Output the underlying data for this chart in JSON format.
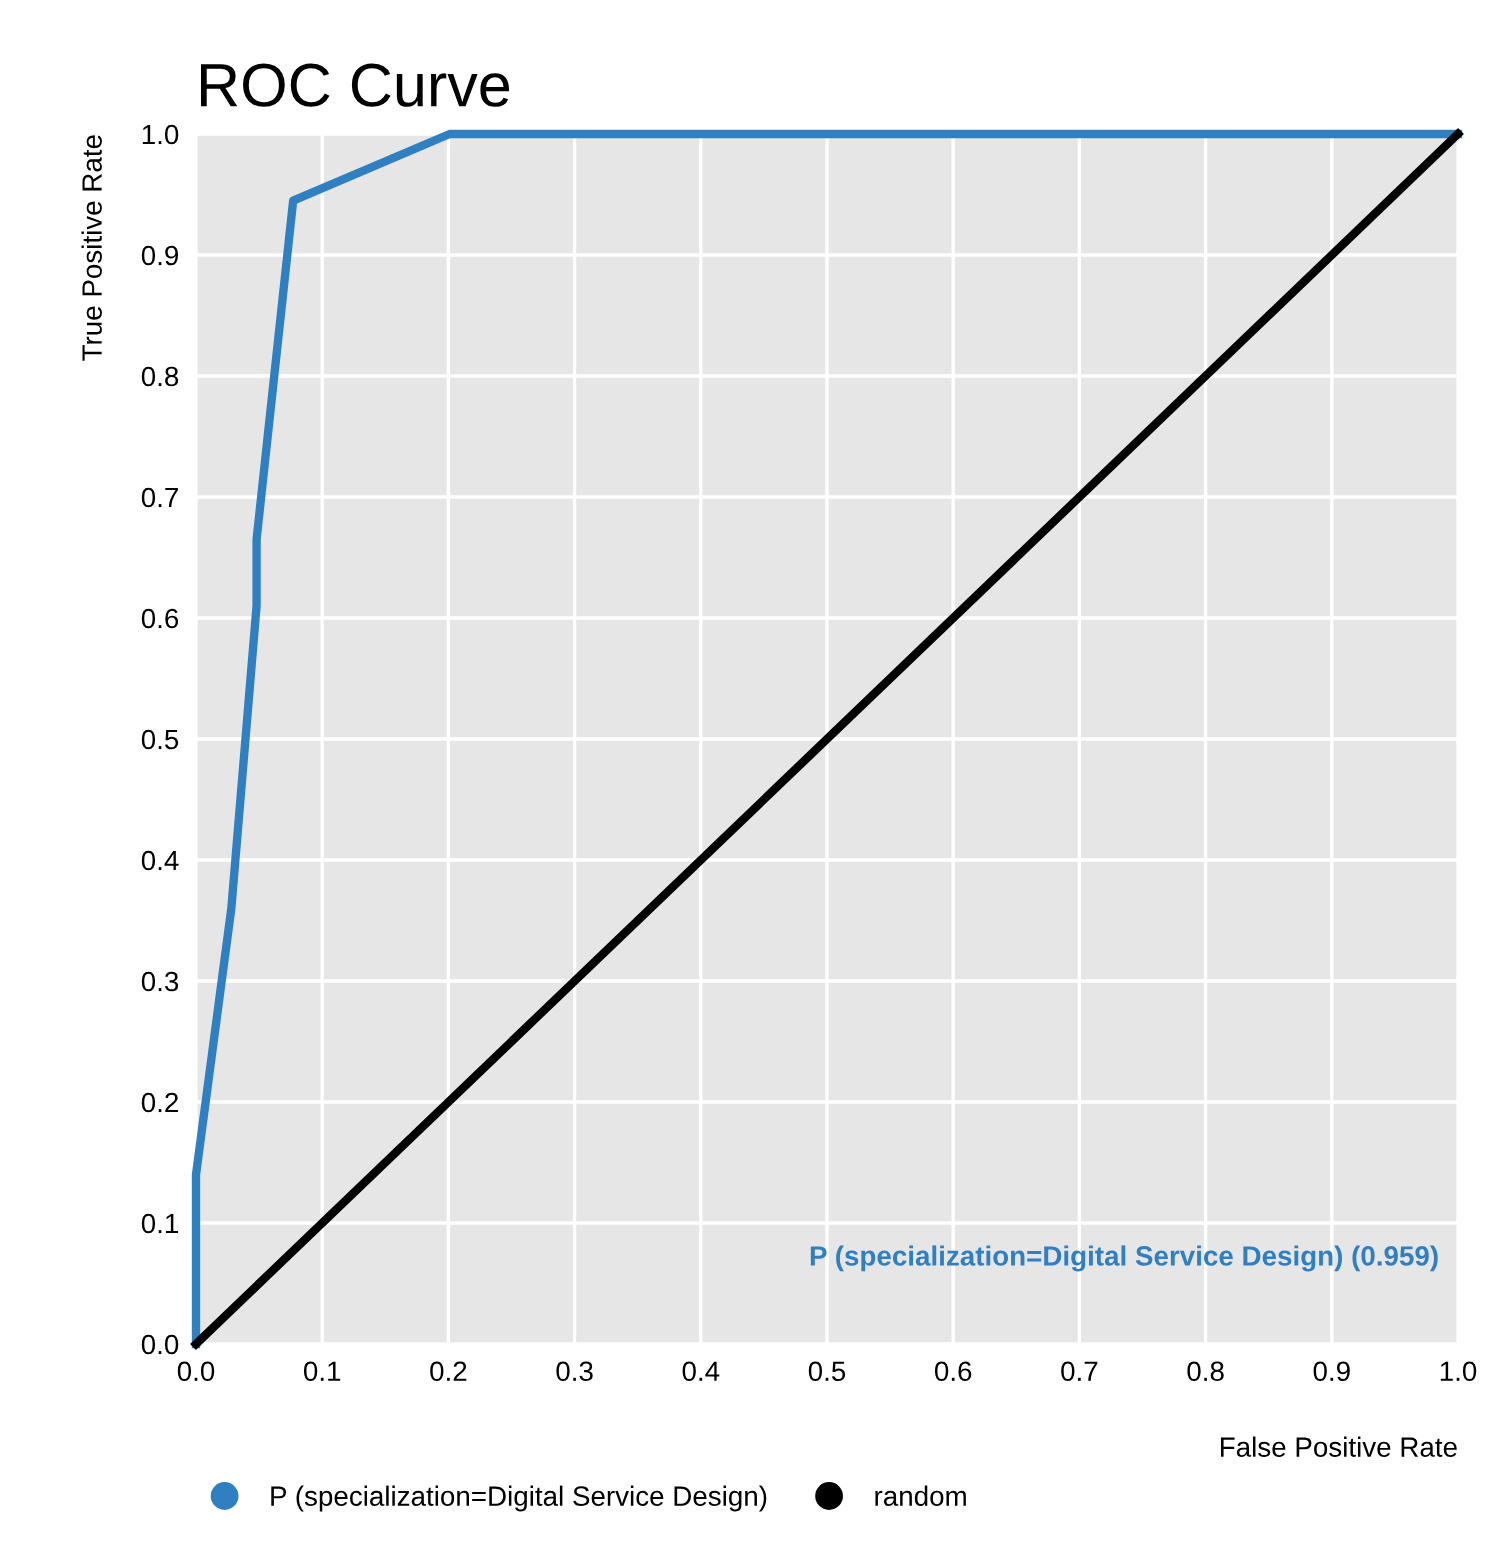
{
  "chart_data": {
    "type": "line",
    "title": "ROC Curve",
    "xlabel": "False Positive Rate",
    "ylabel": "True Positive Rate",
    "series": [
      {
        "name": "P (specialization=Digital Service Design)",
        "color": "#2f7fc1",
        "x": [
          0,
          0,
          0.028,
          0.048,
          0.048,
          0.077,
          0.201,
          1
        ],
        "values": [
          0,
          0.14,
          0.36,
          0.61,
          0.665,
          0.945,
          1,
          1
        ]
      },
      {
        "name": "random",
        "color": "#000000",
        "x": [
          0,
          1
        ],
        "values": [
          0,
          1
        ]
      }
    ],
    "annotations": [
      "P (specialization=Digital Service Design) (0.959)"
    ],
    "xlim": [
      0,
      1
    ],
    "ylim": [
      0,
      1
    ],
    "xticks": [
      {
        "value": 0,
        "label": "0.0"
      },
      0.1,
      0.2,
      0.3,
      0.4,
      0.5,
      0.6,
      0.7,
      0.8,
      0.9,
      {
        "value": 1,
        "label": "1.0"
      }
    ],
    "yticks": [
      {
        "value": 0,
        "label": "0.0"
      },
      0.1,
      0.2,
      0.3,
      0.4,
      0.5,
      0.6,
      0.7,
      0.8,
      0.9,
      {
        "value": 1,
        "label": "1.0"
      }
    ],
    "grid": true,
    "legend": "bottom",
    "marker": "none",
    "line_style": "solid"
  }
}
